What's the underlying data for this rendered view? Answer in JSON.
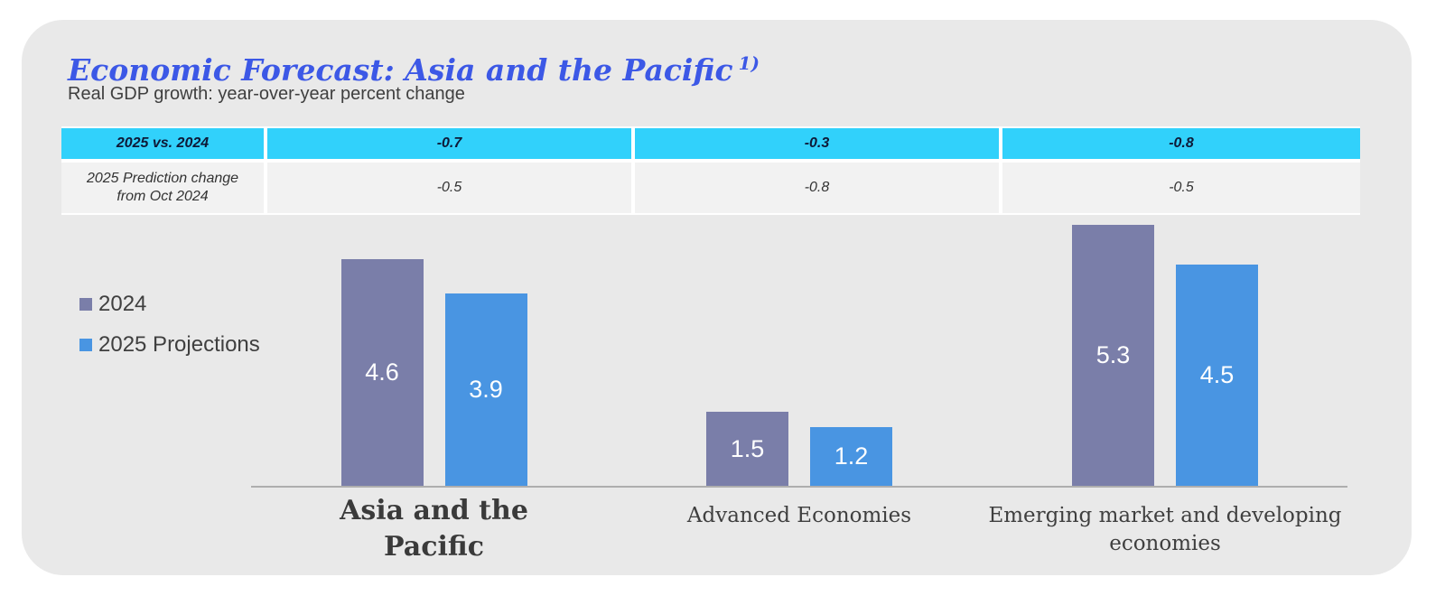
{
  "header": {
    "title": "Economic Forecast: Asia and the Pacific",
    "footnote_marker": "1)",
    "subtitle": "Real GDP growth: year-over-year percent change"
  },
  "colors": {
    "title-blue": "#3c58e6",
    "card-bg": "#e9e9e9",
    "table-header-cyan": "#31d1fb",
    "table-row-bg": "#f2f2f2",
    "bar-2024": "#7a7ea9",
    "bar-2025": "#4995e2",
    "axis-line": "#aeaeae"
  },
  "comparison_table": {
    "rows": [
      {
        "label": "2025 vs. 2024",
        "values": [
          "-0.7",
          "-0.3",
          "-0.8"
        ]
      },
      {
        "label": "2025 Prediction change from Oct 2024",
        "values": [
          "-0.5",
          "-0.8",
          "-0.5"
        ]
      }
    ]
  },
  "chart_data": {
    "type": "bar",
    "title": "Economic Forecast: Asia and the Pacific 1)",
    "subtitle": "Real GDP growth: year-over-year percent change",
    "categories": [
      "Asia and the Pacific",
      "Advanced Economies",
      "Emerging market and developing economies"
    ],
    "series": [
      {
        "name": "2024",
        "color": "#7a7ea9",
        "values": [
          4.6,
          1.5,
          5.3
        ]
      },
      {
        "name": "2025 Projections",
        "color": "#4995e2",
        "values": [
          3.9,
          1.2,
          4.5
        ]
      }
    ],
    "ylim": [
      0,
      5.8
    ],
    "value_labels_shown": true,
    "grid": false,
    "legend_position": "middle-left"
  }
}
